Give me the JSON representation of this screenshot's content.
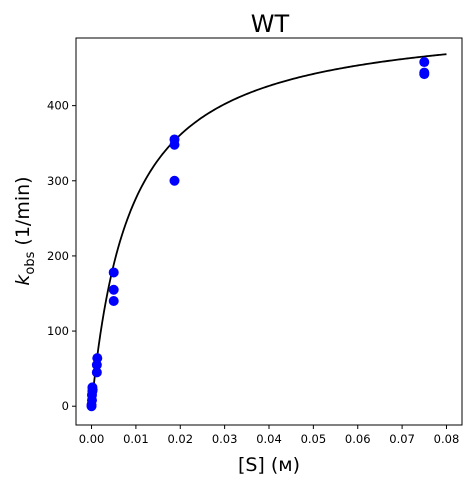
{
  "chart_data": {
    "type": "scatter",
    "title": "WT",
    "xlabel": "[S] (м)",
    "ylabel": "k_obs (1/min)",
    "ylabel_main": "k",
    "ylabel_sub": "obs",
    "ylabel_unit": "(1/min)",
    "xlim": [
      -0.0035,
      0.0835
    ],
    "ylim": [
      -25,
      490
    ],
    "xticks": [
      0.0,
      0.01,
      0.02,
      0.03,
      0.04,
      0.05,
      0.06,
      0.07,
      0.08
    ],
    "xtick_labels": [
      "0.00",
      "0.01",
      "0.02",
      "0.03",
      "0.04",
      "0.05",
      "0.06",
      "0.07",
      "0.08"
    ],
    "yticks": [
      0,
      100,
      200,
      300,
      400
    ],
    "ytick_labels": [
      "0",
      "100",
      "200",
      "300",
      "400"
    ],
    "grid": false,
    "series": [
      {
        "color": "#0000ff",
        "marker": "circle",
        "x": [
          0.0,
          0.0,
          0.0001,
          0.0001,
          0.0002,
          0.0002,
          0.00025,
          0.0012,
          0.0012,
          0.0013,
          0.005,
          0.005,
          0.005,
          0.0187,
          0.0187,
          0.0187,
          0.075,
          0.075,
          0.075
        ],
        "y": [
          0,
          2,
          8,
          15,
          20,
          25,
          22,
          45,
          55,
          64,
          140,
          155,
          178,
          300,
          348,
          355,
          442,
          444,
          458
        ]
      },
      {
        "color": "#000000",
        "fit": "michaelis-menten",
        "line_x_range": [
          0.0,
          0.08
        ],
        "vmax": 520,
        "km": 0.0088
      }
    ]
  }
}
